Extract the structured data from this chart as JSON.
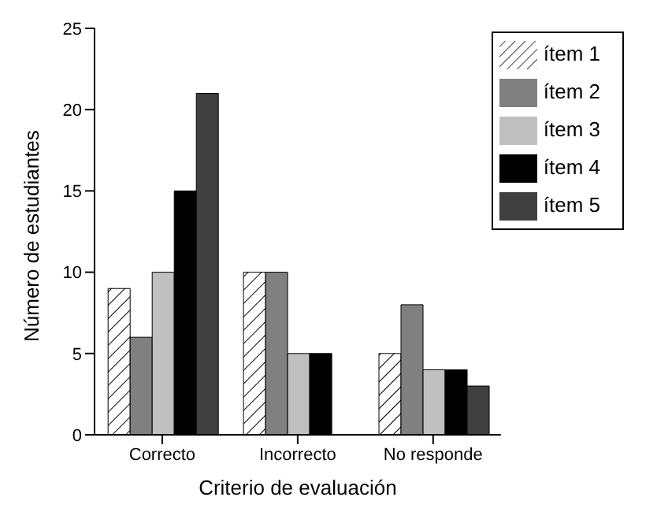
{
  "chart_data": {
    "type": "bar",
    "xlabel": "Criterio de evaluación",
    "ylabel": "Número de estudiantes",
    "categories": [
      "Correcto",
      "Incorrecto",
      "No responde"
    ],
    "series": [
      {
        "name": "ítem 1",
        "color": "#000000",
        "values": [
          9,
          10,
          5
        ]
      },
      {
        "name": "ítem 2",
        "color": "#808080",
        "values": [
          6,
          10,
          8
        ]
      },
      {
        "name": "ítem 3",
        "color": "#c0c0c0",
        "values": [
          10,
          5,
          4
        ]
      },
      {
        "name": "ítem 4",
        "color": "#000000",
        "values": [
          15,
          5,
          4
        ]
      },
      {
        "name": "ítem 5",
        "color": "#404040",
        "values": [
          21,
          0,
          3
        ]
      }
    ],
    "ylim": [
      0,
      25
    ],
    "yticks": [
      0,
      5,
      10,
      15,
      20,
      25
    ],
    "grid": false,
    "legend": "top right"
  }
}
